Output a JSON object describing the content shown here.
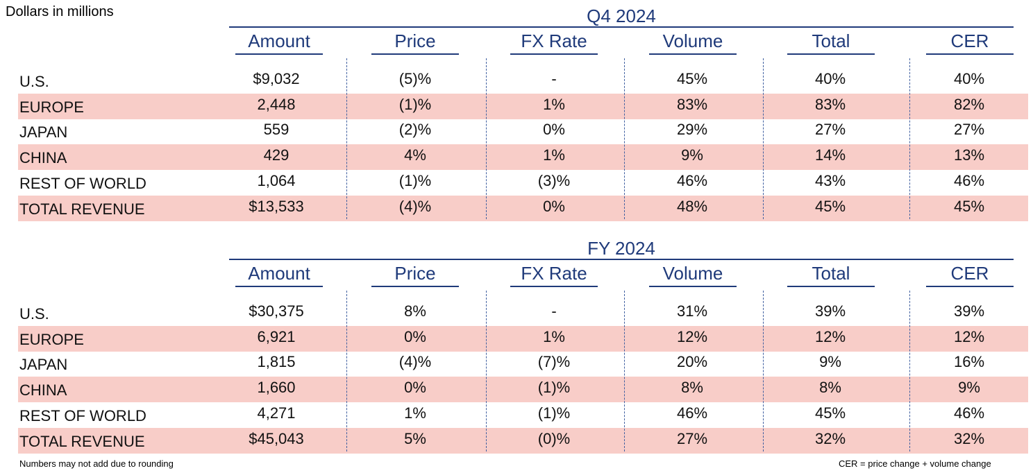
{
  "units_label": "Dollars in millions",
  "columns": [
    "Amount",
    "Price",
    "FX Rate",
    "Volume",
    "Total",
    "CER"
  ],
  "sections": [
    {
      "title": "Q4 2024",
      "rows": [
        {
          "label": "U.S.",
          "values": [
            "$9,032",
            "(5)%",
            "-",
            "45%",
            "40%",
            "40%"
          ]
        },
        {
          "label": "EUROPE",
          "values": [
            "2,448",
            "(1)%",
            "1%",
            "83%",
            "83%",
            "82%"
          ]
        },
        {
          "label": "JAPAN",
          "values": [
            "559",
            "(2)%",
            "0%",
            "29%",
            "27%",
            "27%"
          ]
        },
        {
          "label": "CHINA",
          "values": [
            "429",
            "4%",
            "1%",
            "9%",
            "14%",
            "13%"
          ]
        },
        {
          "label": "REST OF WORLD",
          "values": [
            "1,064",
            "(1)%",
            "(3)%",
            "46%",
            "43%",
            "46%"
          ]
        },
        {
          "label": "TOTAL REVENUE",
          "values": [
            "$13,533",
            "(4)%",
            "0%",
            "48%",
            "45%",
            "45%"
          ]
        }
      ]
    },
    {
      "title": "FY 2024",
      "rows": [
        {
          "label": "U.S.",
          "values": [
            "$30,375",
            "8%",
            "-",
            "31%",
            "39%",
            "39%"
          ]
        },
        {
          "label": "EUROPE",
          "values": [
            "6,921",
            "0%",
            "1%",
            "12%",
            "12%",
            "12%"
          ]
        },
        {
          "label": "JAPAN",
          "values": [
            "1,815",
            "(4)%",
            "(7)%",
            "20%",
            "9%",
            "16%"
          ]
        },
        {
          "label": "CHINA",
          "values": [
            "1,660",
            "0%",
            "(1)%",
            "8%",
            "8%",
            "9%"
          ]
        },
        {
          "label": "REST OF WORLD",
          "values": [
            "4,271",
            "1%",
            "(1)%",
            "46%",
            "45%",
            "46%"
          ]
        },
        {
          "label": "TOTAL REVENUE",
          "values": [
            "$45,043",
            "5%",
            "(0)%",
            "27%",
            "32%",
            "32%"
          ]
        }
      ]
    }
  ],
  "footnotes": {
    "left": "Numbers may not add due to rounding",
    "right": "CER = price change + volume change"
  },
  "colors": {
    "header_blue": "#1f3a7a",
    "row_shade": "#f8cdc8"
  }
}
